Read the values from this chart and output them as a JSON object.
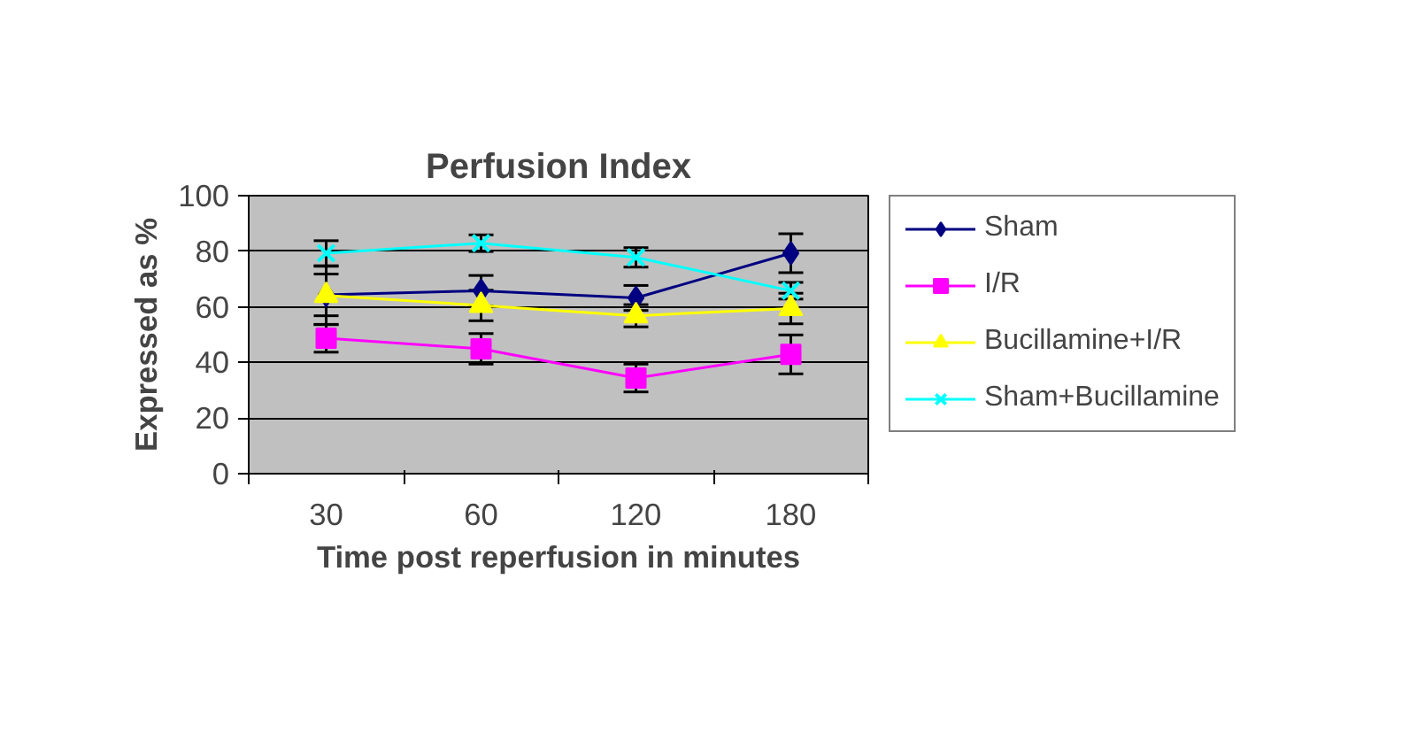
{
  "chart_data": {
    "type": "line",
    "title": "Perfusion Index",
    "xlabel": "Time post reperfusion in minutes",
    "ylabel": "Expressed as %",
    "categories": [
      "30",
      "60",
      "120",
      "180"
    ],
    "ylim": [
      0,
      100
    ],
    "yticks": [
      0,
      20,
      40,
      60,
      80,
      100
    ],
    "grid": "y",
    "legend": "right",
    "series": [
      {
        "name": "Sham",
        "color": "#000080",
        "marker": "diamond",
        "values": [
          64.3,
          65.8,
          63.2,
          79.3
        ],
        "errors": [
          7.5,
          5.5,
          4.5,
          7
        ]
      },
      {
        "name": "I/R",
        "color": "#ff00ff",
        "marker": "square",
        "values": [
          48.7,
          44.9,
          34.4,
          42.9
        ],
        "errors": [
          5,
          5.5,
          5,
          7
        ]
      },
      {
        "name": "Bucillamine+I/R",
        "color": "#ffff00",
        "marker": "triangle",
        "values": [
          64.1,
          60.5,
          56.8,
          59.4
        ],
        "errors": [
          10.5,
          5.5,
          4,
          5.5
        ]
      },
      {
        "name": "Sham+Bucillamine",
        "color": "#00ffff",
        "marker": "cross",
        "values": [
          79.3,
          82.9,
          77.8,
          65.8
        ],
        "errors": [
          4.5,
          3,
          3.5,
          3
        ]
      }
    ]
  }
}
